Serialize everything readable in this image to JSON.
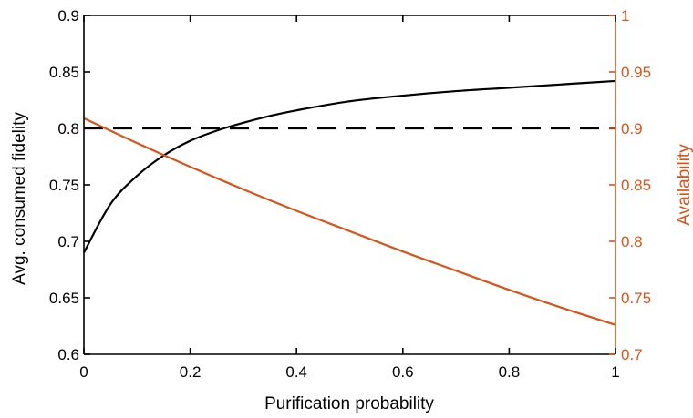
{
  "chart_data": {
    "type": "line",
    "title": "",
    "xlabel": "Purification probability",
    "ylabel_left": "Avg. consumed fidelity",
    "ylabel_right": "Availability",
    "xlim": [
      0,
      1
    ],
    "ylim_left": [
      0.6,
      0.9
    ],
    "ylim_right": [
      0.7,
      1.0
    ],
    "x_ticks": [
      0,
      0.2,
      0.4,
      0.6,
      0.8,
      1
    ],
    "x_tick_labels": [
      "0",
      "0.2",
      "0.4",
      "0.6",
      "0.8",
      "1"
    ],
    "y_left_ticks": [
      0.6,
      0.65,
      0.7,
      0.75,
      0.8,
      0.85,
      0.9
    ],
    "y_left_tick_labels": [
      "0.6",
      "0.65",
      "0.7",
      "0.75",
      "0.8",
      "0.85",
      "0.9"
    ],
    "y_right_ticks": [
      0.7,
      0.75,
      0.8,
      0.85,
      0.9,
      0.95,
      1.0
    ],
    "y_right_tick_labels": [
      "0.7",
      "0.75",
      "0.8",
      "0.85",
      "0.9",
      "0.95",
      "1"
    ],
    "grid": false,
    "legend": "none",
    "series": [
      {
        "axis": "left",
        "color": "#000000",
        "style": "solid",
        "x": [
          0,
          0.05,
          0.1,
          0.15,
          0.2,
          0.25,
          0.3,
          0.35,
          0.4,
          0.5,
          0.6,
          0.7,
          0.8,
          0.9,
          1.0
        ],
        "y": [
          0.69,
          0.733,
          0.758,
          0.776,
          0.789,
          0.798,
          0.805,
          0.811,
          0.816,
          0.824,
          0.829,
          0.833,
          0.836,
          0.839,
          0.842
        ]
      },
      {
        "axis": "left",
        "color": "#000000",
        "style": "dashed",
        "x": [
          0,
          1
        ],
        "y": [
          0.8,
          0.8
        ]
      },
      {
        "axis": "right",
        "color": "#D95319",
        "style": "solid",
        "x": [
          0,
          0.1,
          0.2,
          0.3,
          0.4,
          0.5,
          0.6,
          0.7,
          0.8,
          0.9,
          1.0
        ],
        "y": [
          0.909,
          0.887,
          0.866,
          0.846,
          0.827,
          0.809,
          0.791,
          0.774,
          0.757,
          0.741,
          0.726
        ]
      }
    ]
  }
}
